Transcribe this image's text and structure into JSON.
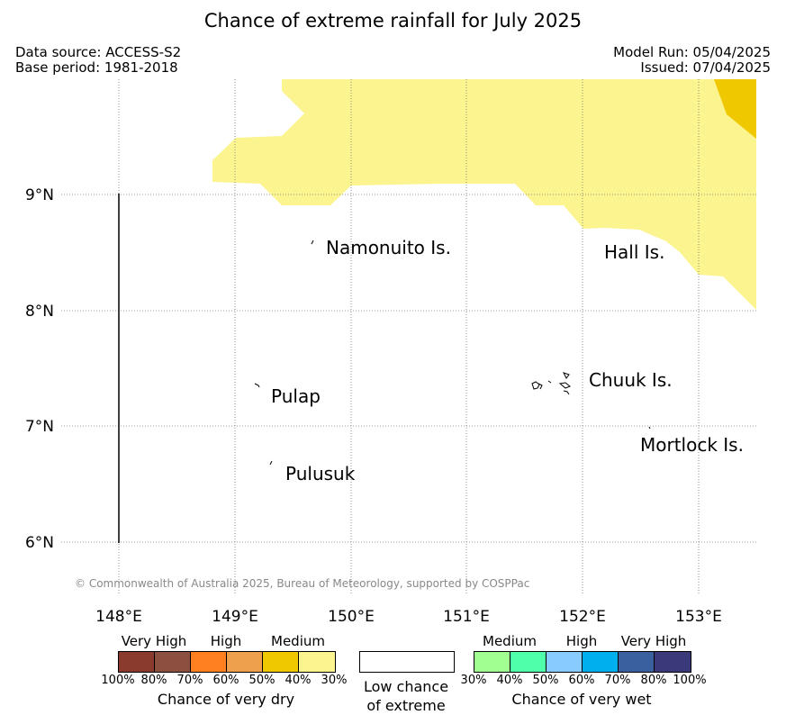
{
  "title": "Chance of extreme rainfall for July 2025",
  "meta": {
    "data_source": "Data source: ACCESS-S2",
    "base_period": "Base period: 1981-2018",
    "model_run": "Model Run: 05/04/2025",
    "issued": "Issued: 07/04/2025"
  },
  "map": {
    "lon_labels": [
      "148°E",
      "149°E",
      "150°E",
      "151°E",
      "152°E",
      "153°E"
    ],
    "lat_labels": [
      "9°N",
      "8°N",
      "7°N",
      "6°N"
    ],
    "places": [
      "Namonuito Is.",
      "Hall Is.",
      "Chuuk Is.",
      "Pulap",
      "Mortlock Is.",
      "Pulusuk"
    ],
    "copyright": "© Commonwealth of Australia 2025, Bureau of Meteorology, supported by COSPPac",
    "colors": {
      "medium_dry": "#fbf48f",
      "high_dry": "#efc800"
    }
  },
  "legend": {
    "dry": {
      "titles": [
        "Very High",
        "High",
        "Medium"
      ],
      "labels": [
        "100%",
        "80%",
        "70%",
        "60%",
        "50%",
        "40%",
        "30%"
      ],
      "colors": [
        "#8b3a2e",
        "#8b5040",
        "#ff8020",
        "#eea04c",
        "#efc800",
        "#fbf48f"
      ],
      "caption": "Chance of very dry"
    },
    "low": {
      "line1": "Low chance",
      "line2": "of extreme"
    },
    "wet": {
      "titles": [
        "Medium",
        "High",
        "Very High"
      ],
      "labels": [
        "30%",
        "40%",
        "50%",
        "60%",
        "70%",
        "80%",
        "100%"
      ],
      "colors": [
        "#a0ff90",
        "#50ffaa",
        "#88ccff",
        "#00b0ee",
        "#3a60a0",
        "#3a3a7a"
      ],
      "caption": "Chance of very wet"
    }
  }
}
